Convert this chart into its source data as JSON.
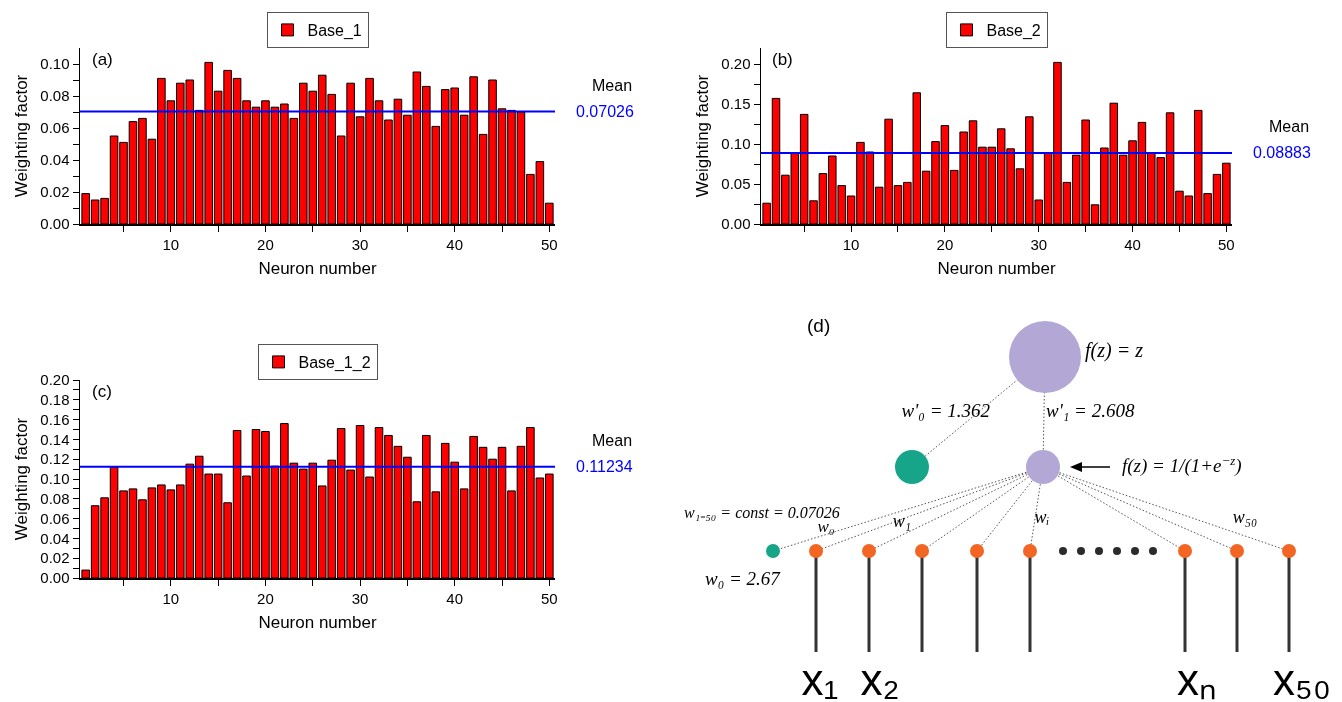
{
  "chart_data": [
    {
      "type": "bar",
      "title": "(a)",
      "xlabel": "Neuron number",
      "ylabel": "Weighting factor",
      "legend": "top",
      "x": [
        1,
        2,
        3,
        4,
        5,
        6,
        7,
        8,
        9,
        10,
        11,
        12,
        13,
        14,
        15,
        16,
        17,
        18,
        19,
        20,
        21,
        22,
        23,
        24,
        25,
        26,
        27,
        28,
        29,
        30,
        31,
        32,
        33,
        34,
        35,
        36,
        37,
        38,
        39,
        40,
        41,
        42,
        43,
        44,
        45,
        46,
        47,
        48,
        49,
        50
      ],
      "series": [
        {
          "name": "Base_1",
          "color": "#ff0000",
          "values": [
            0.019,
            0.015,
            0.016,
            0.055,
            0.051,
            0.064,
            0.066,
            0.053,
            0.091,
            0.077,
            0.088,
            0.09,
            0.071,
            0.101,
            0.083,
            0.096,
            0.091,
            0.077,
            0.073,
            0.077,
            0.073,
            0.075,
            0.066,
            0.088,
            0.083,
            0.093,
            0.081,
            0.055,
            0.088,
            0.067,
            0.091,
            0.077,
            0.065,
            0.078,
            0.068,
            0.095,
            0.086,
            0.061,
            0.084,
            0.085,
            0.068,
            0.092,
            0.056,
            0.09,
            0.072,
            0.071,
            0.07,
            0.031,
            0.039,
            0.013
          ]
        }
      ],
      "xlim": [
        0.4,
        50.6
      ],
      "xticks": [
        {
          "value": 5,
          "label": null
        },
        10,
        {
          "value": 15,
          "label": null
        },
        20,
        {
          "value": 25,
          "label": null
        },
        30,
        {
          "value": 35,
          "label": null
        },
        40,
        {
          "value": 45,
          "label": null
        },
        50
      ],
      "ylim": [
        0,
        0.11
      ],
      "yticks": [
        {
          "value": 0,
          "label": "0.00"
        },
        {
          "value": 0.01,
          "label": null
        },
        {
          "value": 0.02,
          "label": "0.02"
        },
        {
          "value": 0.03,
          "label": null
        },
        {
          "value": 0.04,
          "label": "0.04"
        },
        {
          "value": 0.05,
          "label": null
        },
        {
          "value": 0.06,
          "label": "0.06"
        },
        {
          "value": 0.07,
          "label": null
        },
        {
          "value": 0.08,
          "label": "0.08"
        },
        {
          "value": 0.09,
          "label": null
        },
        {
          "value": 0.1,
          "label": "0.10"
        }
      ],
      "ref_lines": [
        {
          "axis": "y",
          "value": 0.07026,
          "label": "0.07026",
          "color": "#0000ff"
        }
      ],
      "annotations": [
        "Mean"
      ]
    },
    {
      "type": "bar",
      "title": "(b)",
      "xlabel": "Neuron number",
      "ylabel": "Weighting factor",
      "legend": "top",
      "x": [
        1,
        2,
        3,
        4,
        5,
        6,
        7,
        8,
        9,
        10,
        11,
        12,
        13,
        14,
        15,
        16,
        17,
        18,
        19,
        20,
        21,
        22,
        23,
        24,
        25,
        26,
        27,
        28,
        29,
        30,
        31,
        32,
        33,
        34,
        35,
        36,
        37,
        38,
        39,
        40,
        41,
        42,
        43,
        44,
        45,
        46,
        47,
        48,
        49,
        50
      ],
      "series": [
        {
          "name": "Base_2",
          "color": "#ff0000",
          "values": [
            0.026,
            0.157,
            0.061,
            0.088,
            0.137,
            0.029,
            0.063,
            0.085,
            0.048,
            0.035,
            0.102,
            0.09,
            0.046,
            0.131,
            0.048,
            0.052,
            0.164,
            0.066,
            0.103,
            0.123,
            0.067,
            0.115,
            0.129,
            0.096,
            0.096,
            0.119,
            0.094,
            0.069,
            0.134,
            0.03,
            0.089,
            0.202,
            0.052,
            0.086,
            0.13,
            0.024,
            0.095,
            0.151,
            0.086,
            0.104,
            0.127,
            0.089,
            0.083,
            0.139,
            0.041,
            0.035,
            0.142,
            0.038,
            0.062,
            0.076
          ]
        }
      ],
      "xlim": [
        0.4,
        50.6
      ],
      "xticks": [
        {
          "value": 5,
          "label": null
        },
        10,
        {
          "value": 15,
          "label": null
        },
        20,
        {
          "value": 25,
          "label": null
        },
        30,
        {
          "value": 35,
          "label": null
        },
        40,
        {
          "value": 45,
          "label": null
        },
        50
      ],
      "ylim": [
        0,
        0.22
      ],
      "yticks": [
        {
          "value": 0,
          "label": "0.00"
        },
        {
          "value": 0.025,
          "label": null
        },
        {
          "value": 0.05,
          "label": "0.05"
        },
        {
          "value": 0.075,
          "label": null
        },
        {
          "value": 0.1,
          "label": "0.10"
        },
        {
          "value": 0.125,
          "label": null
        },
        {
          "value": 0.15,
          "label": "0.15"
        },
        {
          "value": 0.175,
          "label": null
        },
        {
          "value": 0.2,
          "label": "0.20"
        }
      ],
      "ref_lines": [
        {
          "axis": "y",
          "value": 0.08883,
          "label": "0.08883",
          "color": "#0000ff"
        }
      ],
      "annotations": [
        "Mean"
      ]
    },
    {
      "type": "bar",
      "title": "(c)",
      "xlabel": "Neuron number",
      "ylabel": "Weighting factor",
      "legend": "top",
      "x": [
        1,
        2,
        3,
        4,
        5,
        6,
        7,
        8,
        9,
        10,
        11,
        12,
        13,
        14,
        15,
        16,
        17,
        18,
        19,
        20,
        21,
        22,
        23,
        24,
        25,
        26,
        27,
        28,
        29,
        30,
        31,
        32,
        33,
        34,
        35,
        36,
        37,
        38,
        39,
        40,
        41,
        42,
        43,
        44,
        45,
        46,
        47,
        48,
        49,
        50
      ],
      "series": [
        {
          "name": "Base_1_2",
          "color": "#ff0000",
          "values": [
            0.008,
            0.073,
            0.081,
            0.112,
            0.088,
            0.09,
            0.079,
            0.091,
            0.094,
            0.089,
            0.094,
            0.115,
            0.123,
            0.105,
            0.105,
            0.076,
            0.149,
            0.103,
            0.15,
            0.148,
            0.113,
            0.156,
            0.116,
            0.11,
            0.116,
            0.093,
            0.119,
            0.151,
            0.109,
            0.154,
            0.102,
            0.152,
            0.144,
            0.133,
            0.122,
            0.077,
            0.144,
            0.087,
            0.136,
            0.117,
            0.09,
            0.143,
            0.132,
            0.12,
            0.132,
            0.088,
            0.133,
            0.152,
            0.101,
            0.105
          ]
        }
      ],
      "xlim": [
        0.4,
        50.6
      ],
      "xticks": [
        {
          "value": 5,
          "label": null
        },
        10,
        {
          "value": 15,
          "label": null
        },
        20,
        {
          "value": 25,
          "label": null
        },
        30,
        {
          "value": 35,
          "label": null
        },
        40,
        {
          "value": 45,
          "label": null
        },
        50
      ],
      "ylim": [
        0,
        0.2
      ],
      "yticks": [
        {
          "value": 0,
          "label": "0.00"
        },
        {
          "value": 0.01,
          "label": null
        },
        {
          "value": 0.02,
          "label": "0.02"
        },
        {
          "value": 0.03,
          "label": null
        },
        {
          "value": 0.04,
          "label": "0.04"
        },
        {
          "value": 0.05,
          "label": null
        },
        {
          "value": 0.06,
          "label": "0.06"
        },
        {
          "value": 0.07,
          "label": null
        },
        {
          "value": 0.08,
          "label": "0.08"
        },
        {
          "value": 0.09,
          "label": null
        },
        {
          "value": 0.1,
          "label": "0.10"
        },
        {
          "value": 0.11,
          "label": null
        },
        {
          "value": 0.12,
          "label": "0.12"
        },
        {
          "value": 0.13,
          "label": null
        },
        {
          "value": 0.14,
          "label": "0.14"
        },
        {
          "value": 0.15,
          "label": null
        },
        {
          "value": 0.16,
          "label": "0.16"
        },
        {
          "value": 0.17,
          "label": null
        },
        {
          "value": 0.18,
          "label": "0.18"
        },
        {
          "value": 0.19,
          "label": null
        },
        {
          "value": 0.2,
          "label": "0.20"
        }
      ],
      "ref_lines": [
        {
          "axis": "y",
          "value": 0.11234,
          "label": "0.11234",
          "color": "#0000ff"
        }
      ],
      "annotations": [
        "Mean"
      ]
    },
    {
      "type": "other",
      "title": "(d)",
      "annotations": [
        "f(z) = z",
        "w'₀ = 1.362",
        "w'₁ = 2.608",
        "f(z) = 1/(1+e$^{−z}$)",
        "w₁₋₅₀ = const = 0.07026",
        "w₀",
        "w₁",
        "wᵢ",
        "w₅₀",
        "w₀ = 2.67",
        "x₁",
        "x₂",
        "xₙ",
        "x₅₀"
      ]
    }
  ]
}
